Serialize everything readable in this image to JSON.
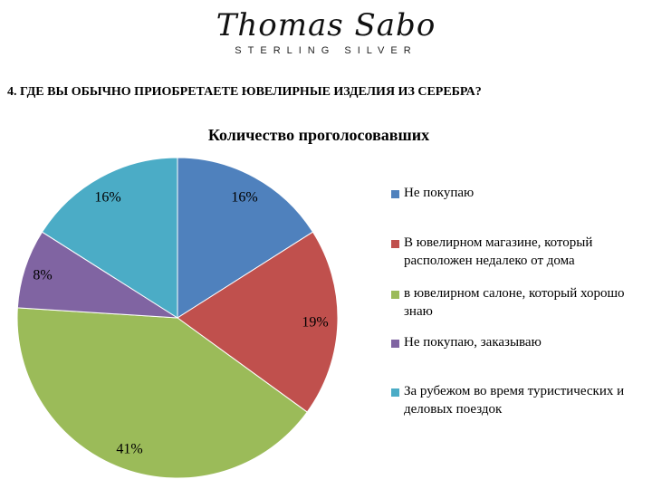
{
  "logo": {
    "script": "Thomas Sabo",
    "sub": "STERLING SILVER"
  },
  "question": "4. ГДЕ ВЫ ОБЫЧНО ПРИОБРЕТАЕТЕ ЮВЕЛИРНЫЕ ИЗДЕЛИЯ ИЗ СЕРЕБРА?",
  "chart_data": {
    "type": "pie",
    "title": "Количество проголосовавших",
    "categories": [
      "Не покупаю",
      "В ювелирном магазине, который расположен недалеко от дома",
      "в ювелирном салоне, который хорошо знаю",
      "Не покупаю, заказываю",
      "За рубежом во время туристических и деловых поездок"
    ],
    "values": [
      16,
      19,
      41,
      8,
      16
    ],
    "labels": [
      "16%",
      "19%",
      "41%",
      "8%",
      "16%"
    ],
    "colors": [
      "#4f81bd",
      "#c0504d",
      "#9bbb59",
      "#8064a2",
      "#4bacc6"
    ],
    "legend_position": "right"
  }
}
